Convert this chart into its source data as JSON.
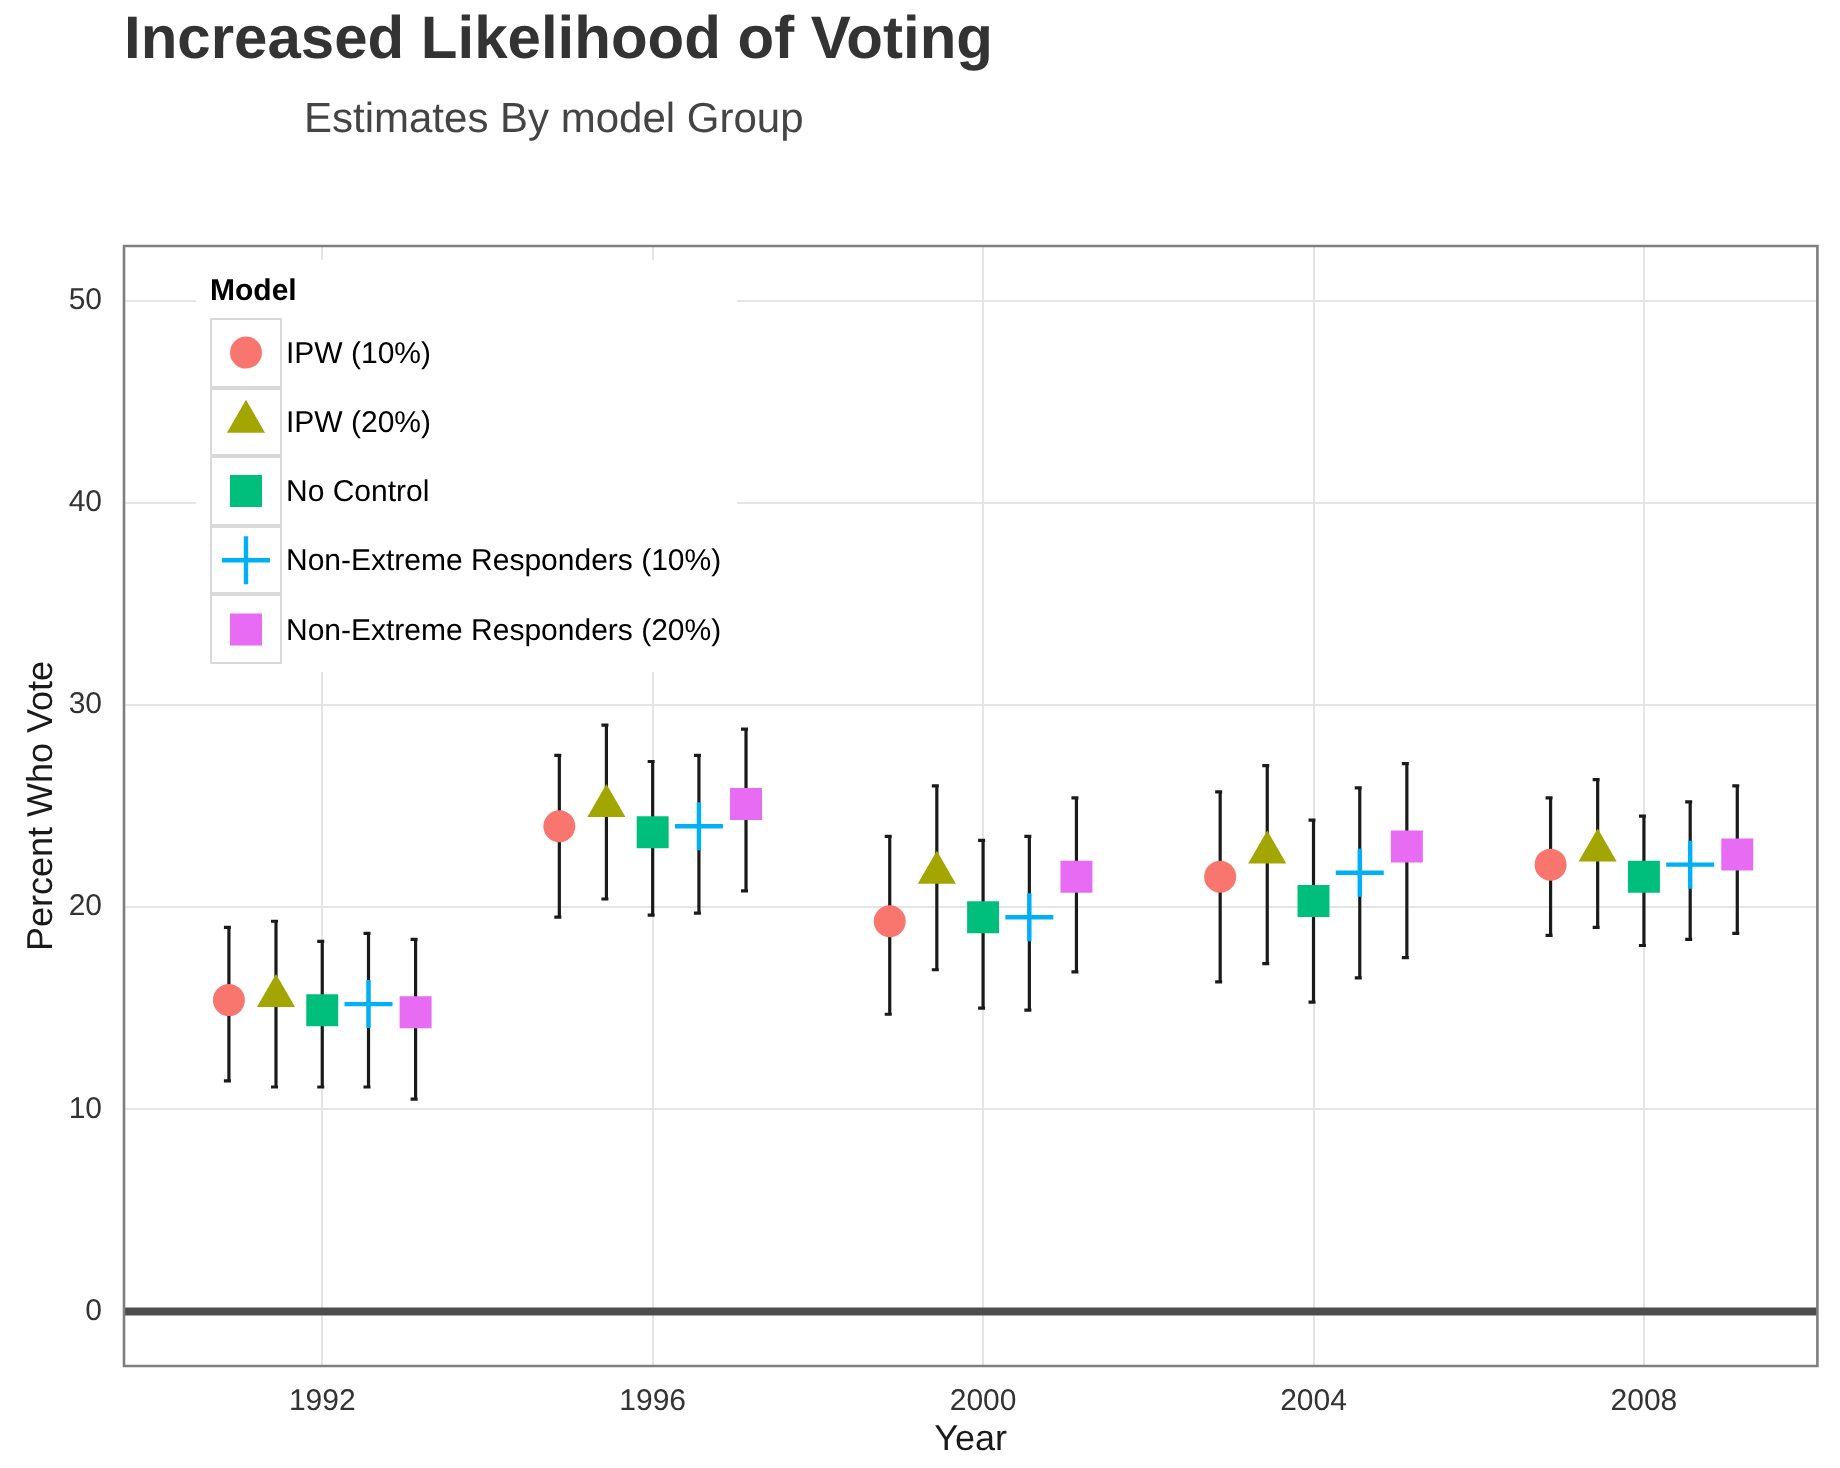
{
  "chart_data": {
    "type": "scatter",
    "title": "Increased Likelihood of Voting",
    "subtitle": "Estimates By model Group",
    "xlabel": "Year",
    "ylabel": "Percent Who Vote",
    "legend_title": "Model",
    "legend": "top left",
    "grid": true,
    "xlim": [
      1989.6,
      2010.1
    ],
    "ylim": [
      -2.7,
      52.7
    ],
    "xticks": [
      1992,
      1996,
      2000,
      2004,
      2008
    ],
    "yticks": [
      0,
      10,
      20,
      30,
      40,
      50
    ],
    "ref_lines": [
      {
        "axis": "y",
        "value": 0,
        "color": "#4d4d4d"
      }
    ],
    "series": [
      {
        "name": "IPW (10%)",
        "color": "#f8766d",
        "marker": "circle",
        "x": [
          1990.87,
          1994.87,
          1998.87,
          2002.87,
          2006.87
        ],
        "values": [
          15.4,
          24.0,
          19.3,
          21.5,
          22.1
        ],
        "errors": [
          [
            11.4,
            19.0
          ],
          [
            19.5,
            27.5
          ],
          [
            14.7,
            23.5
          ],
          [
            16.3,
            25.7
          ],
          [
            18.6,
            25.4
          ]
        ]
      },
      {
        "name": "IPW (20%)",
        "color": "#a3a500",
        "marker": "triangle",
        "x": [
          1991.44,
          1995.44,
          1999.44,
          2003.44,
          2007.44
        ],
        "values": [
          15.6,
          25.0,
          21.7,
          22.7,
          22.8
        ],
        "errors": [
          [
            11.1,
            19.3
          ],
          [
            20.4,
            29.0
          ],
          [
            16.9,
            26.0
          ],
          [
            17.2,
            27.0
          ],
          [
            19.0,
            26.3
          ]
        ]
      },
      {
        "name": "No Control",
        "color": "#00bf7d",
        "marker": "square",
        "x": [
          1992,
          1996,
          2000,
          2004,
          2008
        ],
        "values": [
          14.9,
          23.7,
          19.5,
          20.3,
          21.5
        ],
        "errors": [
          [
            11.1,
            18.3
          ],
          [
            19.6,
            27.2
          ],
          [
            15.0,
            23.3
          ],
          [
            15.3,
            24.3
          ],
          [
            18.1,
            24.5
          ]
        ]
      },
      {
        "name": "Non-Extreme Responders (10%)",
        "color": "#00b0f6",
        "marker": "cross",
        "x": [
          1992.56,
          1996.56,
          2000.56,
          2004.56,
          2008.56
        ],
        "values": [
          15.2,
          24.0,
          19.5,
          21.7,
          22.1
        ],
        "errors": [
          [
            11.1,
            18.7
          ],
          [
            19.7,
            27.5
          ],
          [
            14.9,
            23.5
          ],
          [
            16.5,
            25.9
          ],
          [
            18.4,
            25.2
          ]
        ]
      },
      {
        "name": "Non-Extreme Responders (20%)",
        "color": "#e76bf3",
        "marker": "square",
        "x": [
          1993.13,
          1997.13,
          2001.13,
          2005.13,
          2009.13
        ],
        "values": [
          14.8,
          25.1,
          21.5,
          23.0,
          22.6
        ],
        "errors": [
          [
            10.5,
            18.4
          ],
          [
            20.8,
            28.8
          ],
          [
            16.8,
            25.4
          ],
          [
            17.5,
            27.1
          ],
          [
            18.7,
            26.0
          ]
        ]
      }
    ]
  }
}
